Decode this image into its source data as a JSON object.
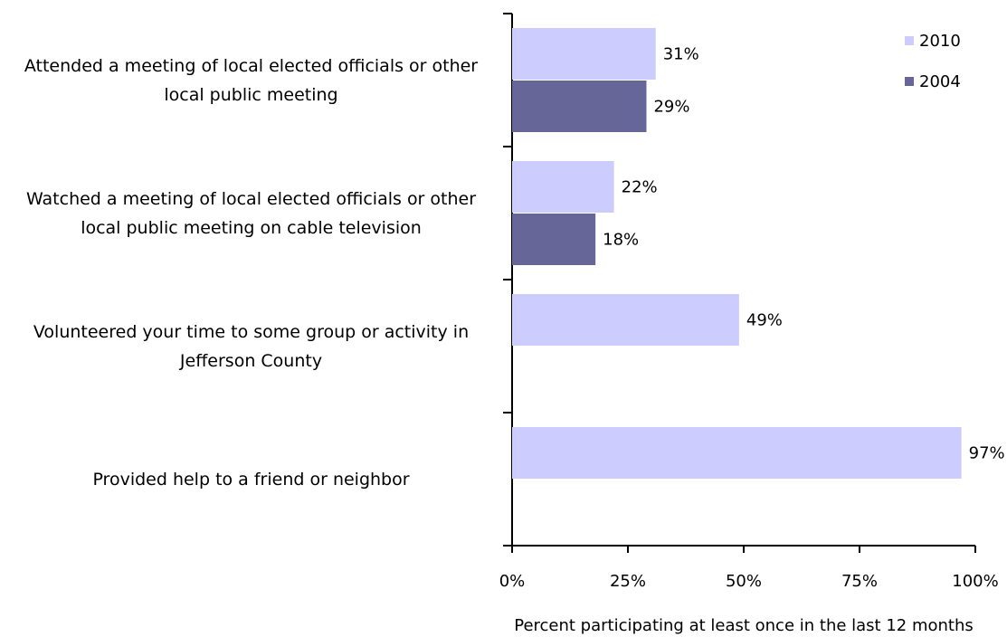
{
  "chart_data": {
    "type": "bar",
    "orientation": "horizontal",
    "categories": [
      "Attended a meeting of local elected officials or other local public meeting",
      "Watched a meeting of local elected officials or other local public meeting on cable television",
      "Volunteered your time to some group or activity in Jefferson County",
      "Provided help to a friend or neighbor"
    ],
    "series": [
      {
        "name": "2010",
        "color": "#ccccff",
        "values": [
          31,
          22,
          49,
          97
        ],
        "value_labels": [
          "31%",
          "22%",
          "49%",
          "97%"
        ]
      },
      {
        "name": "2004",
        "color": "#666699",
        "values": [
          29,
          18,
          null,
          null
        ],
        "value_labels": [
          "29%",
          "18%",
          null,
          null
        ]
      }
    ],
    "xlim": [
      0,
      100
    ],
    "xticks": [
      {
        "value": 0,
        "label": "0%"
      },
      {
        "value": 25,
        "label": "25%"
      },
      {
        "value": 50,
        "label": "50%"
      },
      {
        "value": 75,
        "label": "75%"
      },
      {
        "value": 100,
        "label": "100%"
      }
    ],
    "x_label": "Percent participating at least once in the last 12 months",
    "legend": "top-right"
  }
}
